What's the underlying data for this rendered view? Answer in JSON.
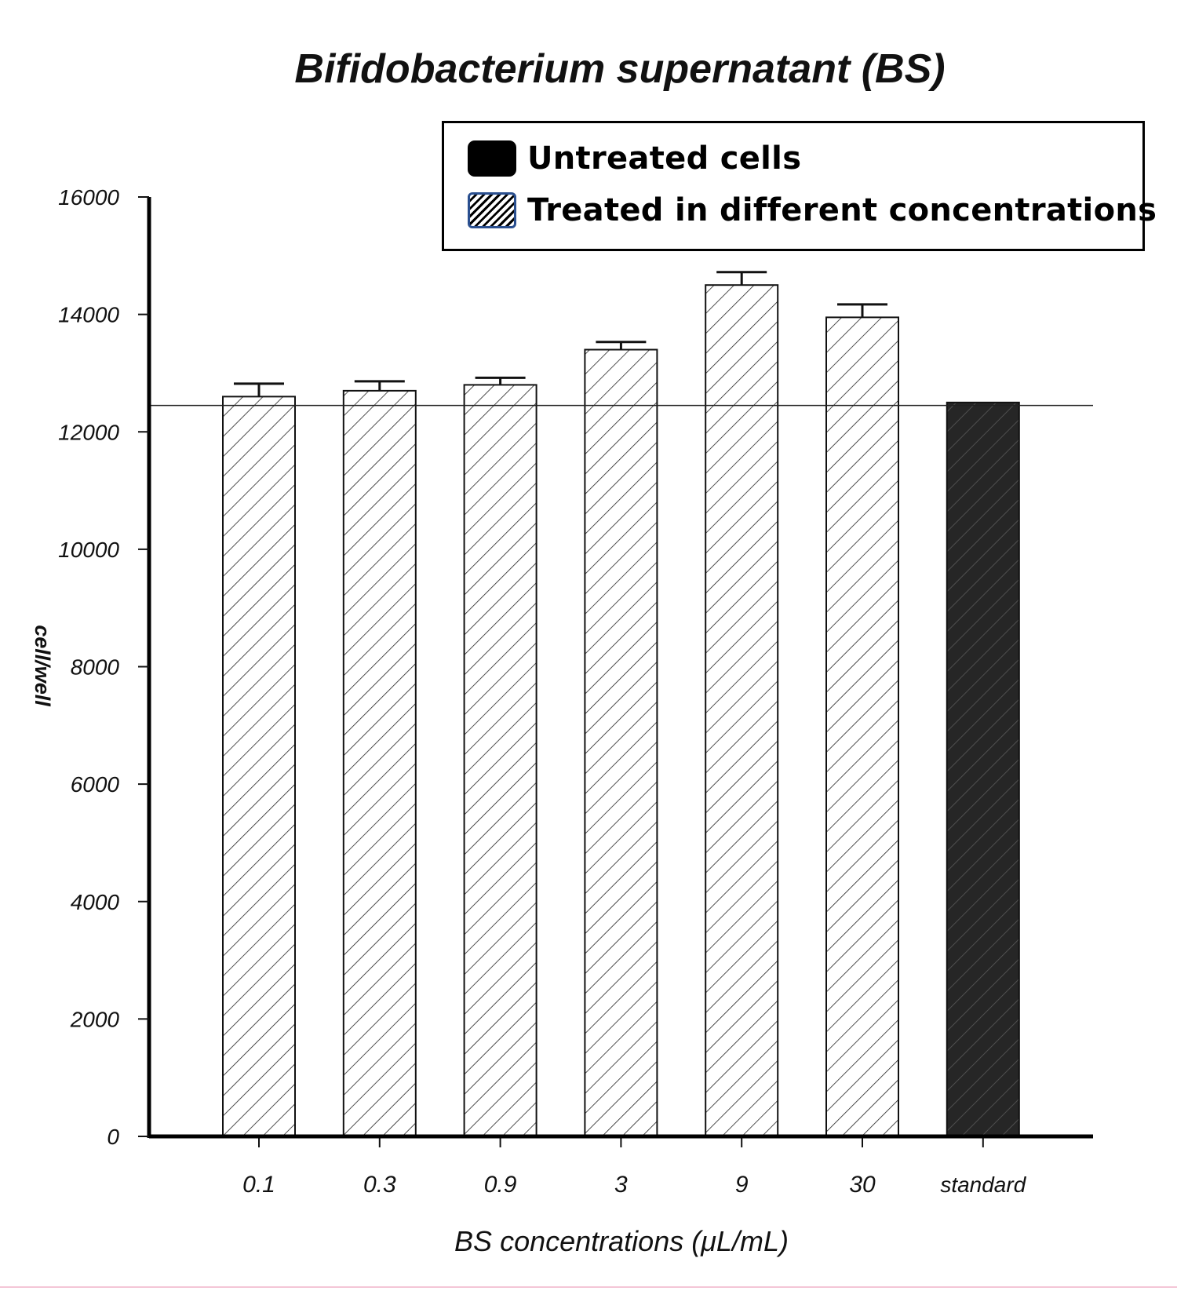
{
  "chart_data": {
    "type": "bar",
    "title": "Bifidobacterium supernatant (BS)",
    "xlabel": "BS concentrations (μL/mL)",
    "ylabel": "cell/well",
    "ylim": [
      0,
      16000
    ],
    "yticks": [
      0,
      2000,
      4000,
      6000,
      8000,
      10000,
      12000,
      14000,
      16000
    ],
    "categories": [
      "0.1",
      "0.3",
      "0.9",
      "3",
      "9",
      "30",
      "standard"
    ],
    "values": [
      12600,
      12700,
      12800,
      13400,
      14500,
      13950,
      12500
    ],
    "errors": [
      220,
      160,
      120,
      130,
      220,
      220,
      0
    ],
    "bar_styles": [
      "hatched",
      "hatched",
      "hatched",
      "hatched",
      "hatched",
      "hatched",
      "solid"
    ],
    "reference_line": 12450,
    "grid": false,
    "legend": {
      "position": "top-right",
      "entries": [
        {
          "label": "Untreated cells",
          "style": "solid"
        },
        {
          "label": "Treated in different concentrations",
          "style": "hatched"
        }
      ]
    }
  }
}
